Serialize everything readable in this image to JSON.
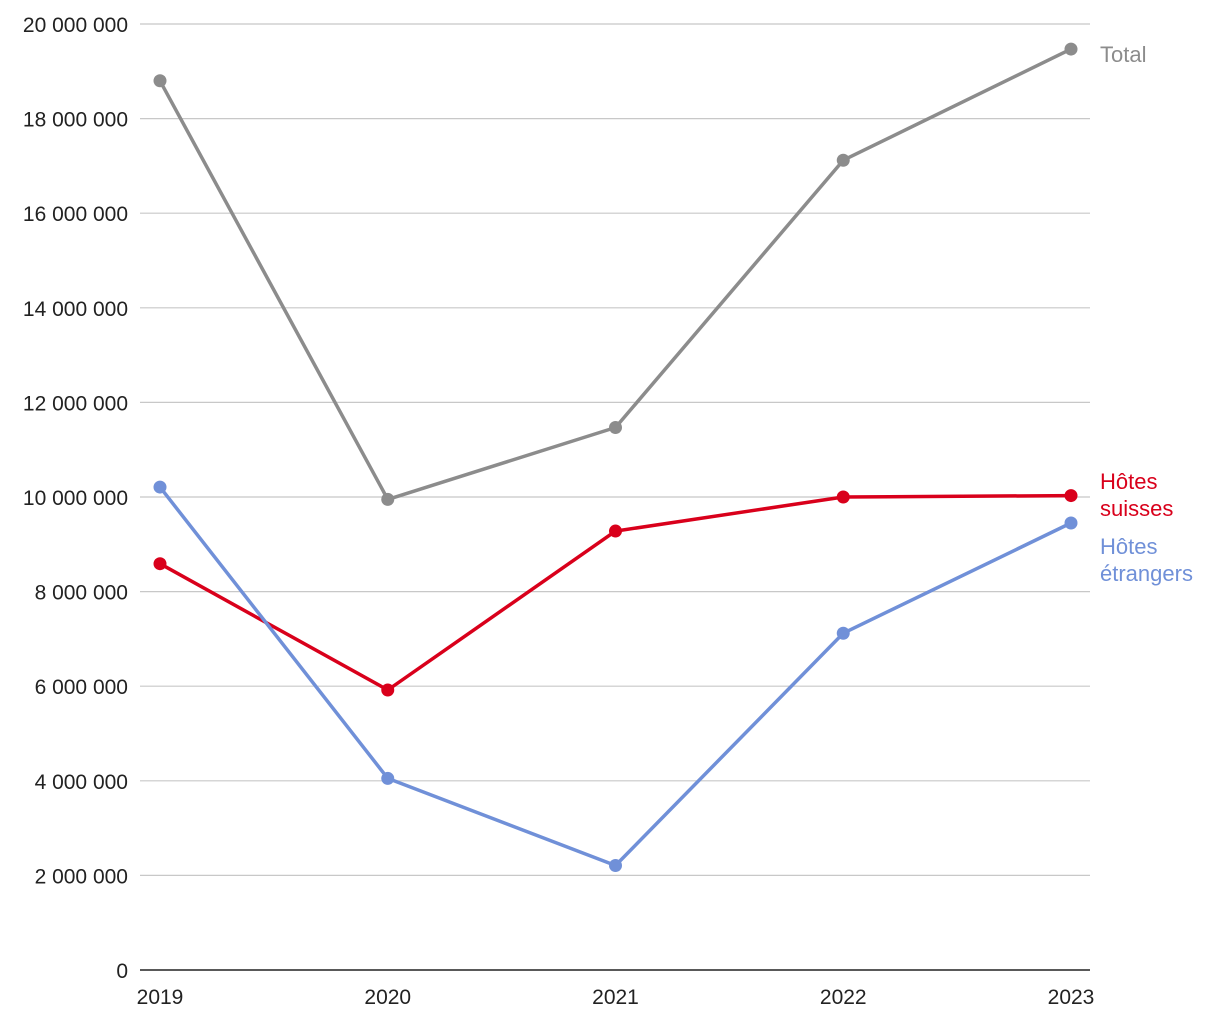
{
  "chart_data": {
    "type": "line",
    "title": "",
    "xlabel": "",
    "ylabel": "",
    "x": [
      "2019",
      "2020",
      "2021",
      "2022",
      "2023"
    ],
    "ylim": [
      0,
      20000000
    ],
    "yticks": [
      0,
      2000000,
      4000000,
      6000000,
      8000000,
      10000000,
      12000000,
      14000000,
      16000000,
      18000000,
      20000000
    ],
    "ytick_labels": [
      "0",
      "2 000 000",
      "4 000 000",
      "6 000 000",
      "8 000 000",
      "10 000 000",
      "12 000 000",
      "14 000 000",
      "16 000 000",
      "18 000 000",
      "20 000 000"
    ],
    "grid": true,
    "legend": "inline labels at right end of each line",
    "series": [
      {
        "name": "Total",
        "label_lines": [
          "Total"
        ],
        "color": "#8c8c8c",
        "values": [
          18800000,
          9950000,
          11470000,
          17120000,
          19470000
        ]
      },
      {
        "name": "Hôtes suisses",
        "label_lines": [
          "Hôtes",
          "suisses"
        ],
        "color": "#d9001b",
        "values": [
          8590000,
          5920000,
          9280000,
          10000000,
          10030000
        ]
      },
      {
        "name": "Hôtes étrangers",
        "label_lines": [
          "Hôtes",
          "étrangers"
        ],
        "color": "#7090d8",
        "values": [
          10210000,
          4050000,
          2210000,
          7120000,
          9450000
        ]
      }
    ]
  }
}
